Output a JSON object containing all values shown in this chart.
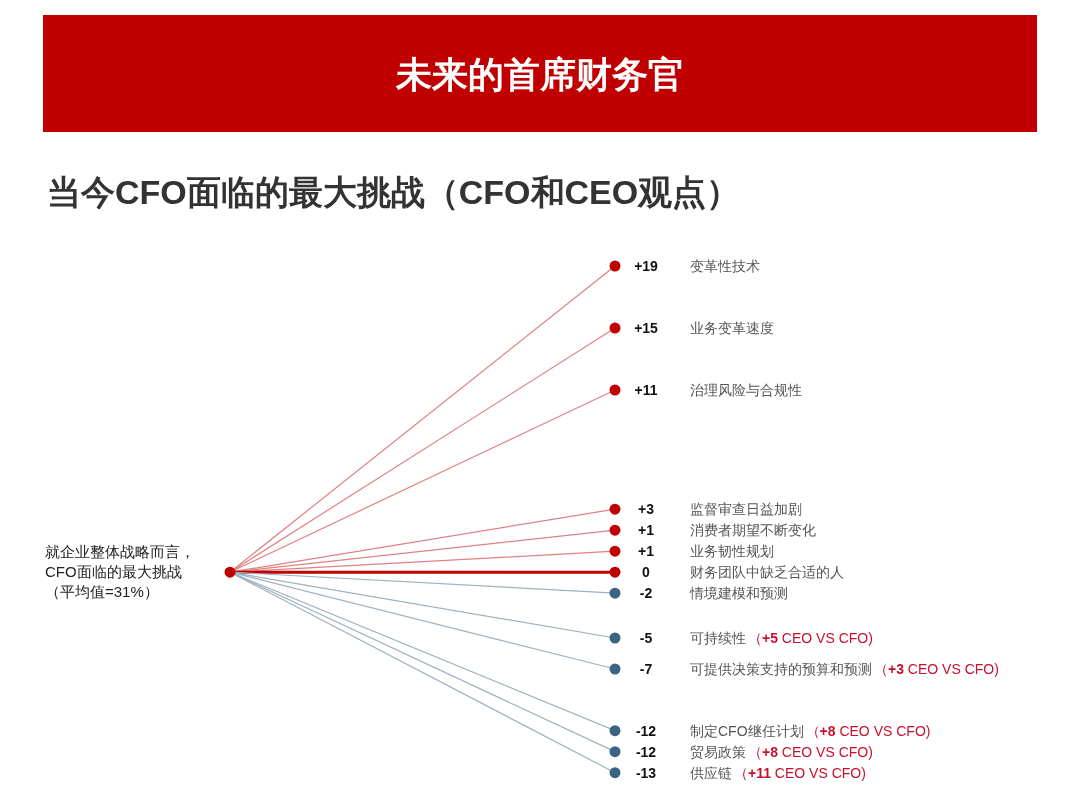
{
  "chart_data": {
    "type": "other",
    "title": "未来的首席财务官",
    "subtitle": "当今CFO面临的最大挑战（CFO和CEO观点）",
    "categories": [
      "变革性技术",
      "业务变革速度",
      "治理风险与合规性",
      "监督审查日益加剧",
      "消费者期望不断变化",
      "业务韧性规划",
      "财务团队中缺乏合适的人",
      "情境建模和预测",
      "可持续性",
      "可提供决策支持的预算和预测",
      "制定CFO继任计划",
      "贸易政策",
      "供应链"
    ],
    "values": [
      19,
      15,
      11,
      3,
      1,
      1,
      0,
      -2,
      -5,
      -7,
      -12,
      -12,
      -13
    ],
    "value_labels": [
      "+19",
      "+15",
      "+11",
      "+3",
      "+1",
      "+1",
      "0",
      "-2",
      "-5",
      "-7",
      "-12",
      "-12",
      "-13"
    ],
    "colors": [
      "#c00000",
      "#c00000",
      "#c00000",
      "#c00000",
      "#c00000",
      "#c00000",
      "#c00000",
      "#3b6482",
      "#3b6482",
      "#3b6482",
      "#3b6482",
      "#3b6482",
      "#3b6482"
    ],
    "annotations": [
      "就企业整体战略而言，CFO面临的最大挑战（平均值=31%）",
      {
        "text": "（**+5** CEO VS CFO)",
        "y": "可持续性"
      },
      {
        "text": "（**+3** CEO VS CFO)",
        "y": "可提供决策支持的预算和预测"
      },
      {
        "text": "（**+8** CEO VS CFO)",
        "y": "制定CFO继任计划"
      },
      {
        "text": "（**+8** CEO VS CFO)",
        "y": "贸易政策"
      },
      {
        "text": "（**+11** CEO VS CFO)",
        "y": "供应链"
      }
    ]
  }
}
